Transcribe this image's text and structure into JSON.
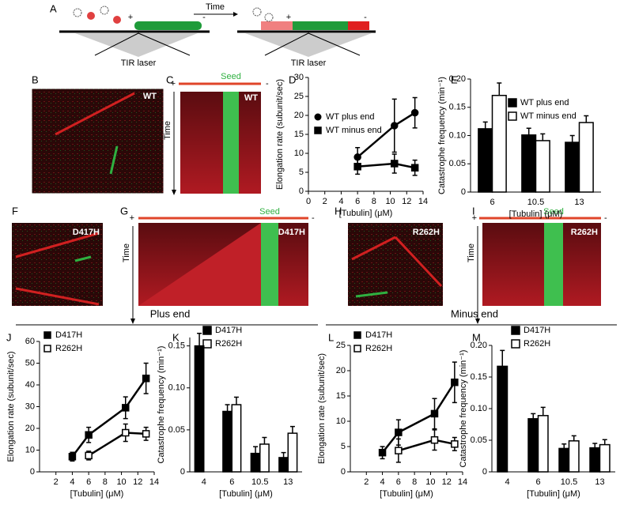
{
  "panel_labels": [
    "A",
    "B",
    "C",
    "D",
    "E",
    "F",
    "G",
    "H",
    "I",
    "J",
    "K",
    "L",
    "M"
  ],
  "schematic": {
    "time": "Time",
    "lasers": [
      "TIR laser",
      "TIR laser"
    ],
    "ends": [
      "+",
      "-",
      "+",
      "-"
    ]
  },
  "images": [
    {
      "label": "WT"
    },
    {
      "label": "D417H"
    },
    {
      "label": "R262H"
    }
  ],
  "kymographs": [
    {
      "label": "WT",
      "seed": "Seed",
      "time": "Time",
      "plus": "+",
      "minus": "-"
    },
    {
      "label": "D417H",
      "seed": "Seed",
      "time": "Time",
      "plus": "+",
      "minus": "-"
    },
    {
      "label": "R262H",
      "seed": "Seed",
      "time": "Time",
      "plus": "+",
      "minus": "-"
    }
  ],
  "sections": [
    "Plus end",
    "Minus end"
  ],
  "chart_data": [
    {
      "type": "line",
      "x_label": "[Tubulin] (μM)",
      "y_label": "Elongation rate (subunit/sec)",
      "x": [
        6,
        10.5,
        13
      ],
      "series": [
        {
          "name": "WT plus end",
          "marker": "circle",
          "color": "#000000",
          "values": [
            9,
            17.3,
            20.7
          ],
          "errors": [
            2.5,
            7,
            4
          ]
        },
        {
          "name": "WT minus end",
          "marker": "square",
          "color": "#000000",
          "values": [
            6.5,
            7.3,
            6.2
          ],
          "errors": [
            2,
            2.5,
            2
          ]
        }
      ],
      "xlim": [
        0,
        14
      ],
      "xticks": [
        0,
        2,
        4,
        6,
        8,
        10,
        12,
        14
      ],
      "ylim": [
        0,
        30
      ],
      "yticks": [
        0,
        5,
        10,
        15,
        20,
        25,
        30
      ]
    },
    {
      "type": "bar",
      "x_label": "[Tubulin] (μM)",
      "y_label": "Catastrophe frequency (min⁻¹)",
      "categories": [
        "6",
        "10.5",
        "13"
      ],
      "series": [
        {
          "name": "WT plus end",
          "color": "#000000",
          "values": [
            0.112,
            0.101,
            0.088
          ],
          "errors": [
            0.012,
            0.012,
            0.012
          ]
        },
        {
          "name": "WT minus end",
          "color": "#ffffff",
          "values": [
            0.171,
            0.091,
            0.123
          ],
          "errors": [
            0.022,
            0.012,
            0.012
          ]
        }
      ],
      "ylim": [
        0,
        0.2
      ],
      "yticks": [
        0,
        0.05,
        {
          "value": 0.1,
          "label": "0.10"
        },
        0.15,
        {
          "value": 0.2,
          "label": "0.20"
        }
      ]
    },
    {
      "type": "line",
      "x_label": "[Tubulin] (μM)",
      "y_label": "Elongation rate (subunit/sec)",
      "x": [
        4,
        6,
        10.5,
        13
      ],
      "series": [
        {
          "name": "D417H",
          "marker": "square",
          "color": "#000000",
          "values": [
            7,
            17,
            29.5,
            43
          ],
          "errors": [
            2,
            3.5,
            5,
            7
          ]
        },
        {
          "name": "R262H",
          "marker": "square",
          "color": "#ffffff",
          "values": [
            null,
            7.5,
            18,
            17.5
          ],
          "errors": [
            null,
            2,
            4,
            3
          ]
        }
      ],
      "xlim": [
        0,
        14
      ],
      "xticks": [
        2,
        4,
        6,
        8,
        10,
        12,
        14
      ],
      "ylim": [
        0,
        60
      ],
      "yticks": [
        0,
        10,
        20,
        30,
        40,
        50,
        60
      ]
    },
    {
      "type": "bar",
      "x_label": "[Tubulin] (μM)",
      "y_label": "Catastrophe frequency (min⁻¹)",
      "categories": [
        "4",
        "6",
        "10.5",
        "13"
      ],
      "series": [
        {
          "name": "D417H",
          "color": "#000000",
          "values": [
            0.15,
            0.072,
            0.022,
            0.017
          ],
          "errors": [
            0.015,
            0.008,
            0.008,
            0.006
          ]
        },
        {
          "name": "R262H",
          "color": "#ffffff",
          "values": [
            null,
            0.08,
            0.033,
            0.046
          ],
          "errors": [
            null,
            0.009,
            0.008,
            0.008
          ]
        }
      ],
      "ylim": [
        0,
        0.16
      ],
      "yticks": [
        0,
        0.05,
        {
          "value": 0.1,
          "label": "0.10"
        },
        0.15
      ]
    },
    {
      "type": "line",
      "x_label": "[Tubulin] (μM)",
      "y_label": "Elongation rate (subunit/sec)",
      "x": [
        4,
        6,
        10.5,
        13
      ],
      "series": [
        {
          "name": "D417H",
          "marker": "square",
          "color": "#000000",
          "values": [
            3.8,
            7.8,
            11.5,
            17.7
          ],
          "errors": [
            1.2,
            2.5,
            3,
            4
          ]
        },
        {
          "name": "R262H",
          "marker": "square",
          "color": "#ffffff",
          "values": [
            null,
            4.2,
            6.3,
            5.5
          ],
          "errors": [
            null,
            2.3,
            2,
            1.3
          ]
        }
      ],
      "xlim": [
        0,
        14
      ],
      "xticks": [
        2,
        4,
        6,
        8,
        10,
        12,
        14
      ],
      "ylim": [
        0,
        25
      ],
      "yticks": [
        0,
        5,
        10,
        15,
        20,
        25
      ]
    },
    {
      "type": "bar",
      "x_label": "[Tubulin] (μM)",
      "y_label": "Catastrophe frequency (min⁻¹)",
      "categories": [
        "4",
        "6",
        "10.5",
        "13"
      ],
      "series": [
        {
          "name": "D417H",
          "color": "#000000",
          "values": [
            0.167,
            0.084,
            0.037,
            0.038
          ],
          "errors": [
            0.025,
            0.008,
            0.007,
            0.007
          ]
        },
        {
          "name": "R262H",
          "color": "#ffffff",
          "values": [
            null,
            0.089,
            0.049,
            0.043
          ],
          "errors": [
            null,
            0.013,
            0.008,
            0.008
          ]
        }
      ],
      "ylim": [
        0,
        0.2
      ],
      "yticks": [
        0,
        0.05,
        {
          "value": 0.1,
          "label": "0.10"
        },
        0.15,
        {
          "value": 0.2,
          "label": "0.20"
        }
      ]
    }
  ]
}
